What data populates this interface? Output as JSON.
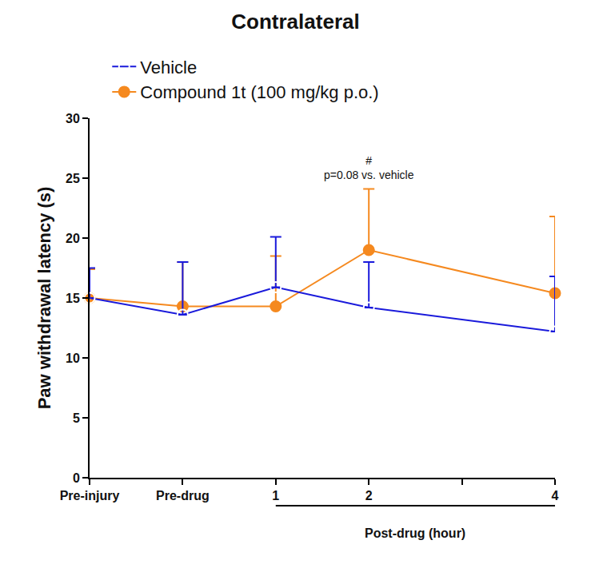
{
  "chart_data": {
    "type": "line",
    "title": "Contralateral",
    "y_label": "Paw withdrawal latency (s)",
    "categories": [
      "Pre-injury",
      "Pre-drug",
      "1",
      "2",
      null,
      "4"
    ],
    "x_group": {
      "label": "Post-drug (hour)",
      "from": "1",
      "to": "4"
    },
    "series": [
      {
        "name": "Vehicle",
        "color": "#1a1adb",
        "marker": "open circle",
        "values": [
          15.0,
          13.6,
          15.9,
          14.2,
          null,
          12.2
        ],
        "error_upper": [
          2.5,
          4.4,
          4.2,
          3.8,
          null,
          4.6
        ]
      },
      {
        "name": "Compound 1t (100 mg/kg p.o.)",
        "color": "#f5891f",
        "marker": "filled circle",
        "values": [
          15.0,
          14.3,
          14.3,
          19.0,
          null,
          15.4
        ],
        "error_upper": [
          2.4,
          3.7,
          4.2,
          5.1,
          null,
          6.4
        ]
      }
    ],
    "annotations": [
      {
        "category": "2",
        "y": 24.6,
        "lines": [
          "#",
          "p=0.08 vs. vehicle"
        ]
      }
    ],
    "ylim": [
      0,
      30
    ],
    "yticks": [
      0,
      5,
      10,
      15,
      20,
      25,
      30
    ],
    "grid": false,
    "legend": "top left"
  }
}
